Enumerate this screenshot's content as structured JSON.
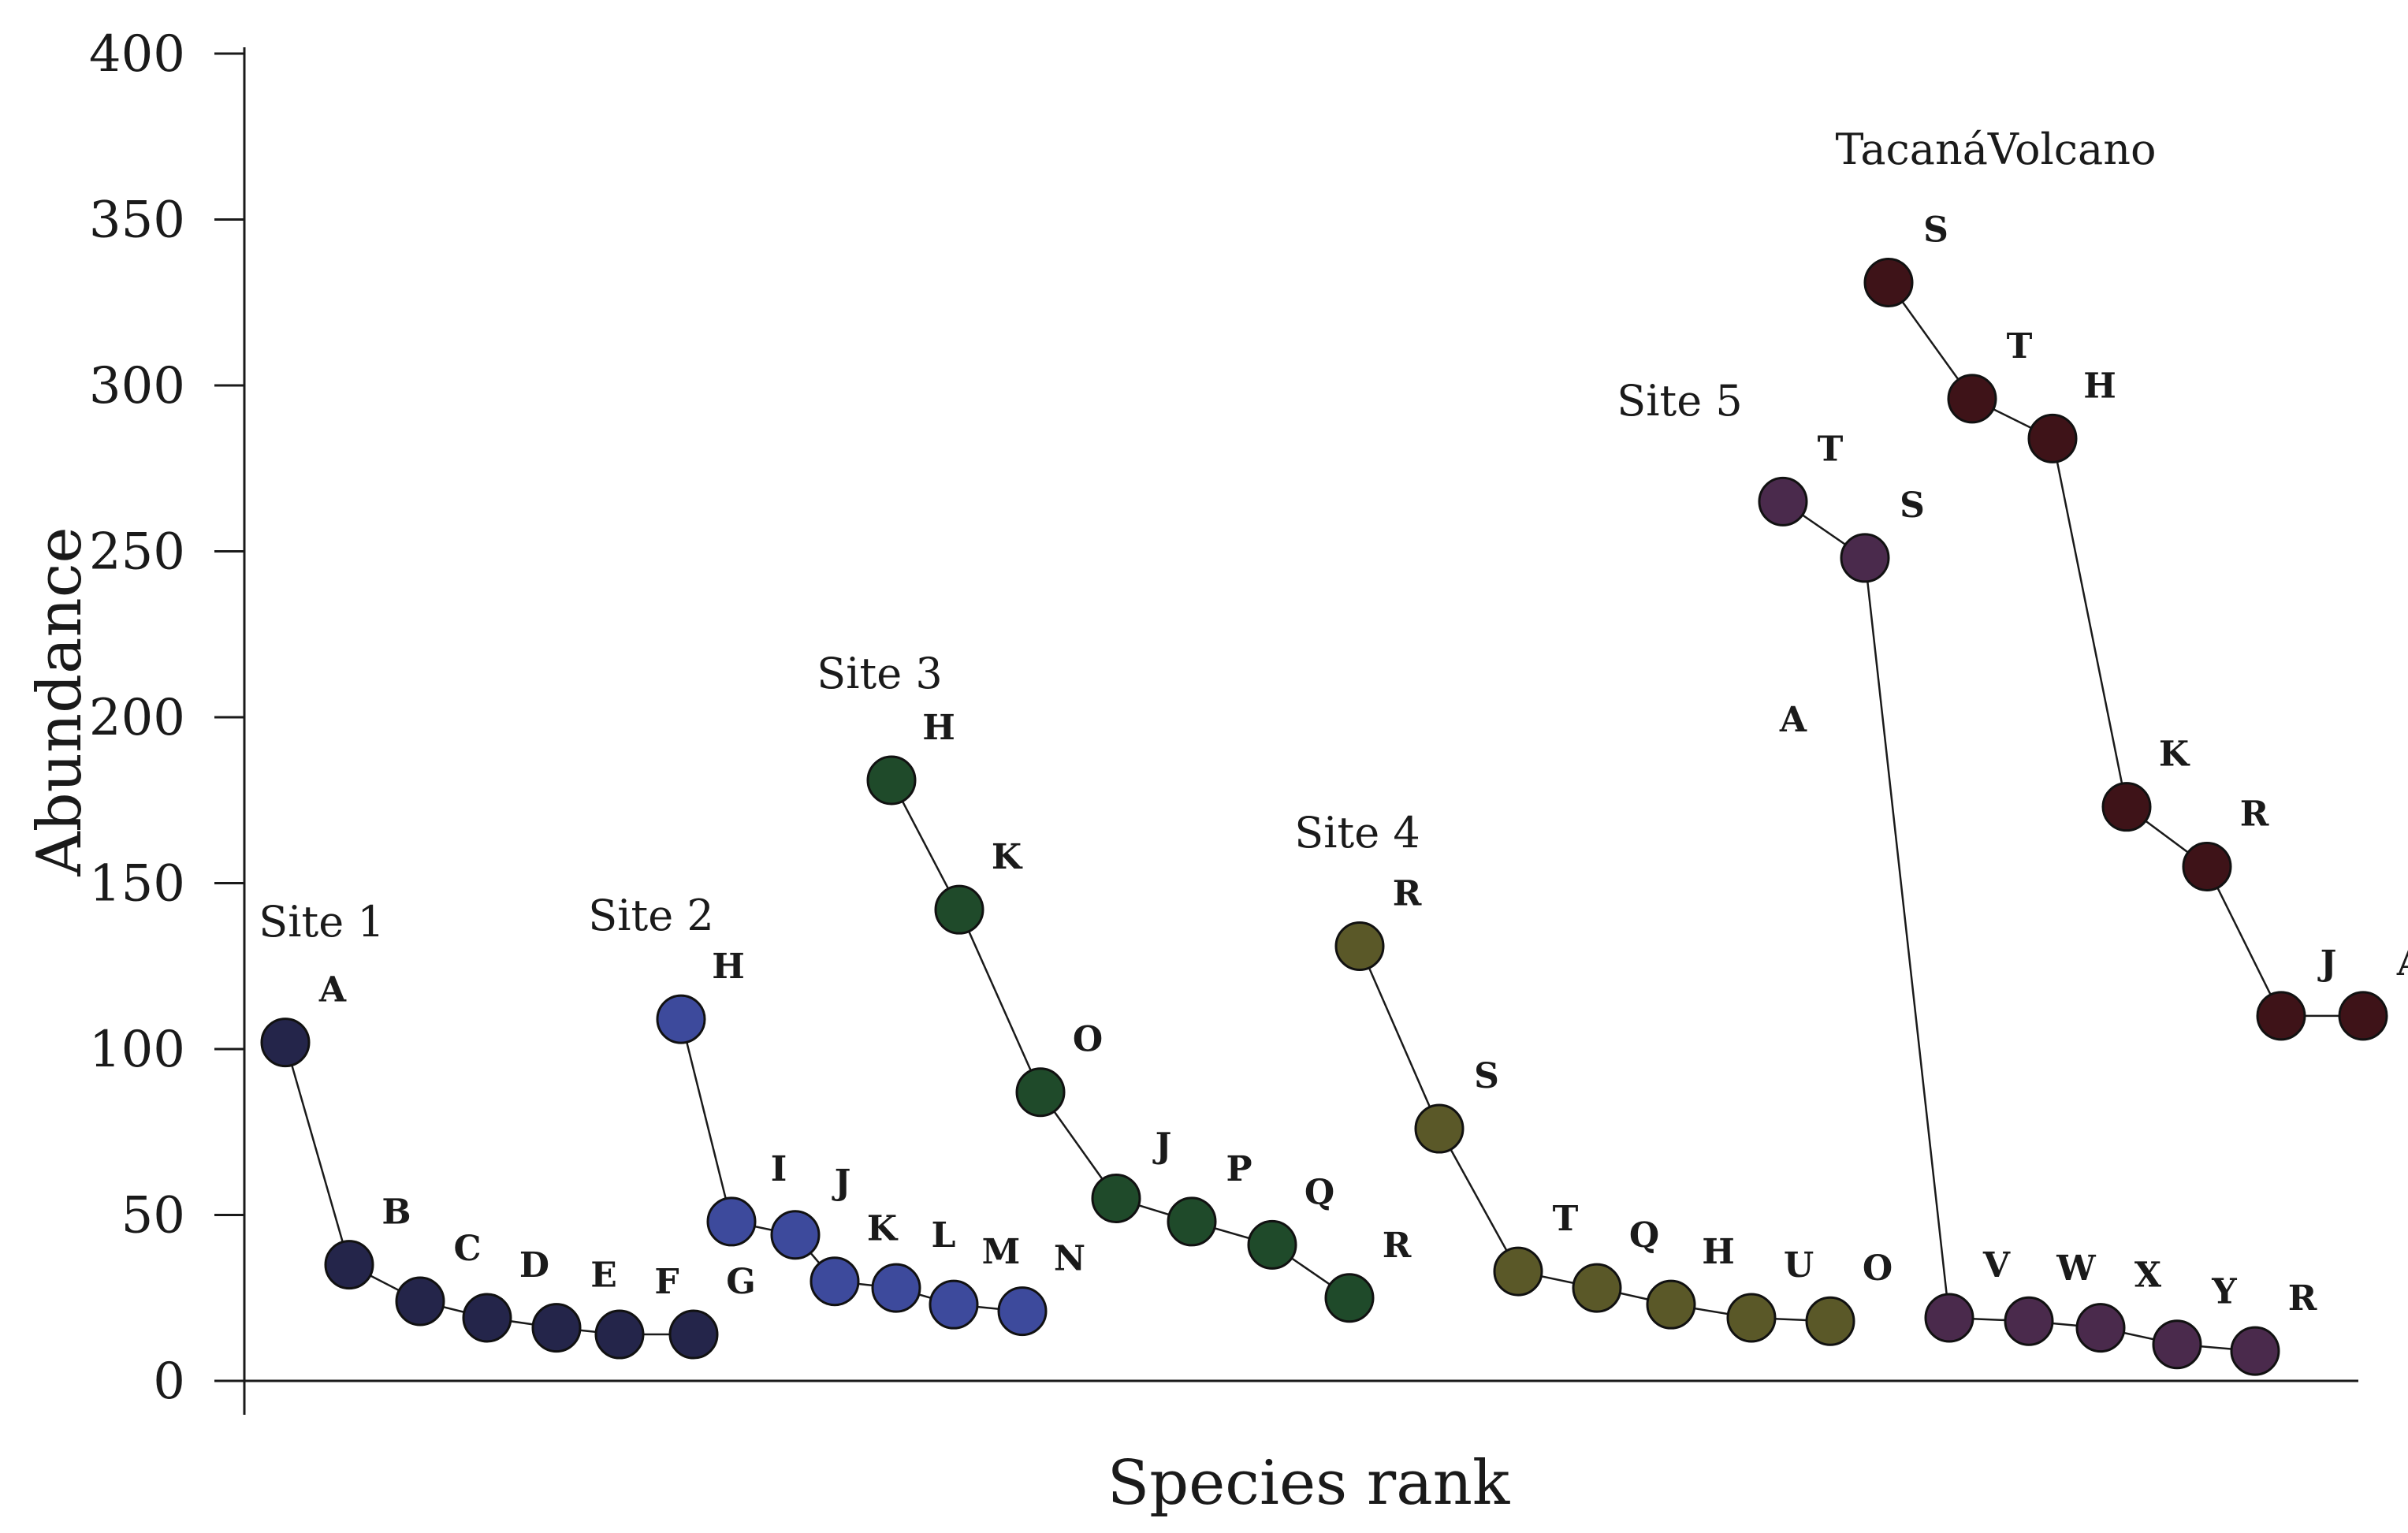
{
  "chart_data": {
    "type": "line",
    "title": "",
    "xlabel": "Species rank",
    "ylabel": "Abundance",
    "ylim": [
      0,
      400
    ],
    "yticks": [
      0,
      50,
      100,
      150,
      200,
      250,
      300,
      350,
      400
    ],
    "grid": false,
    "series": [
      {
        "name": "Site 1",
        "color": "#24254a",
        "points": [
          {
            "species": "A",
            "value": 102
          },
          {
            "species": "B",
            "value": 35
          },
          {
            "species": "C",
            "value": 24
          },
          {
            "species": "D",
            "value": 19
          },
          {
            "species": "E",
            "value": 16
          },
          {
            "species": "F",
            "value": 14
          },
          {
            "species": "G",
            "value": 14
          }
        ]
      },
      {
        "name": "Site 2",
        "color": "#3d4a9c",
        "points": [
          {
            "species": "H",
            "value": 109
          },
          {
            "species": "I",
            "value": 48
          },
          {
            "species": "J",
            "value": 44
          },
          {
            "species": "K",
            "value": 30
          },
          {
            "species": "L",
            "value": 28
          },
          {
            "species": "M",
            "value": 23
          },
          {
            "species": "N",
            "value": 21
          }
        ]
      },
      {
        "name": "Site 3",
        "color": "#1f4a2a",
        "points": [
          {
            "species": "H",
            "value": 181
          },
          {
            "species": "K",
            "value": 142
          },
          {
            "species": "O",
            "value": 87
          },
          {
            "species": "J",
            "value": 55
          },
          {
            "species": "P",
            "value": 48
          },
          {
            "species": "Q",
            "value": 41
          },
          {
            "species": "R",
            "value": 25
          }
        ]
      },
      {
        "name": "Site 4",
        "color": "#5a5828",
        "points": [
          {
            "species": "R",
            "value": 131
          },
          {
            "species": "S",
            "value": 76
          },
          {
            "species": "T",
            "value": 33
          },
          {
            "species": "Q",
            "value": 28
          },
          {
            "species": "H",
            "value": 23
          },
          {
            "species": "U",
            "value": 19
          },
          {
            "species": "O",
            "value": 18
          }
        ]
      },
      {
        "name": "Site 5",
        "color": "#4a2a4c",
        "points": [
          {
            "species": "T",
            "value": 265
          },
          {
            "species": "S",
            "value": 248
          },
          {
            "species": "A",
            "value": null
          },
          {
            "species": "V",
            "value": 19
          },
          {
            "species": "W",
            "value": 18
          },
          {
            "species": "X",
            "value": 16
          },
          {
            "species": "Y",
            "value": 11
          },
          {
            "species": "R",
            "value": 9
          }
        ]
      },
      {
        "name": "TacanáVolcano",
        "color": "#3e1318",
        "points": [
          {
            "species": "S",
            "value": 331
          },
          {
            "species": "T",
            "value": 296
          },
          {
            "species": "H",
            "value": 284
          },
          {
            "species": "K",
            "value": 173
          },
          {
            "species": "R",
            "value": 155
          },
          {
            "species": "J",
            "value": 110
          },
          {
            "species": "A",
            "value": 110
          }
        ]
      }
    ]
  }
}
